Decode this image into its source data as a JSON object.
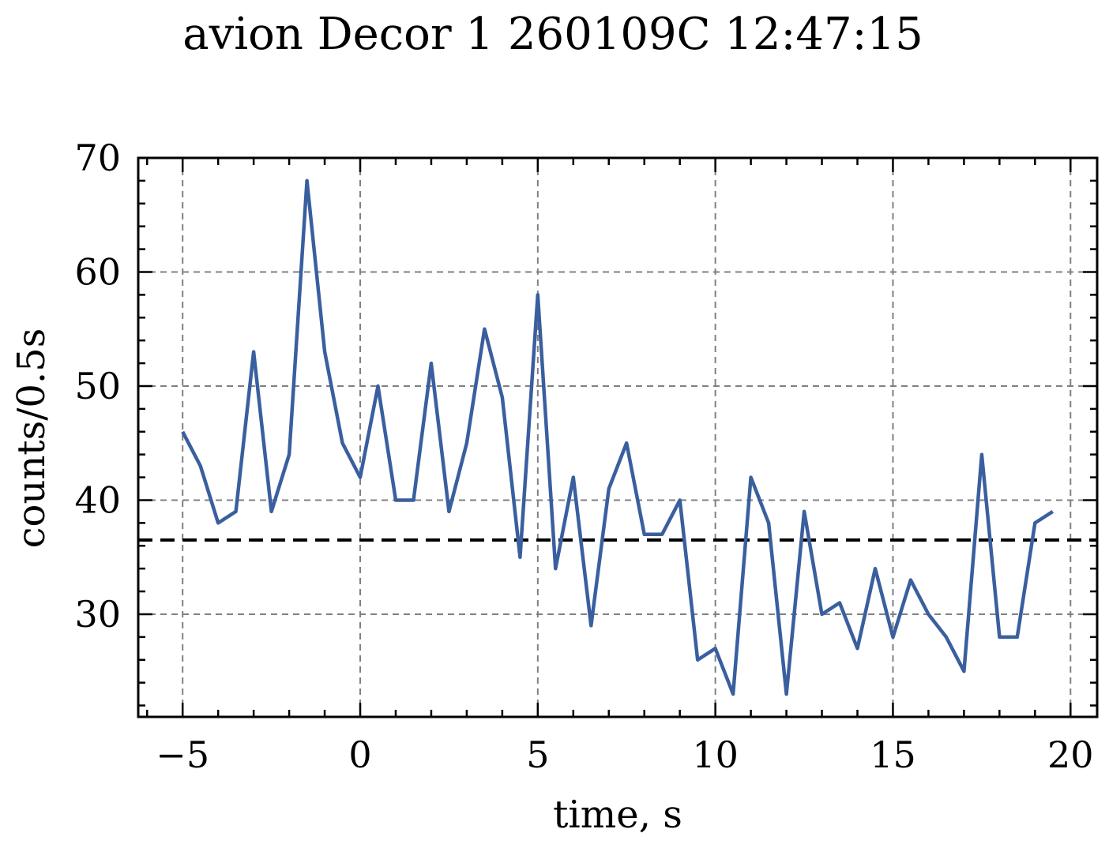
{
  "chart_data": {
    "type": "line",
    "title": "avion Decor 1 260109C 12:47:15",
    "xlabel": "time, s",
    "ylabel": "counts/0.5s",
    "xlim": [
      -6.25,
      20.75
    ],
    "ylim": [
      21,
      70
    ],
    "xticks": [
      -5,
      0,
      5,
      10,
      15,
      20
    ],
    "xtick_labels": [
      "−5",
      "0",
      "5",
      "10",
      "15",
      "20"
    ],
    "yticks": [
      30,
      40,
      50,
      60,
      70
    ],
    "ytick_labels": [
      "30",
      "40",
      "50",
      "60",
      "70"
    ],
    "grid": true,
    "series": [
      {
        "color": "#3a5f9f",
        "x": [
          -5,
          -4.5,
          -4,
          -3.5,
          -3,
          -2.5,
          -2,
          -1.5,
          -1,
          -0.5,
          0,
          0.5,
          1,
          1.5,
          2,
          2.5,
          3,
          3.5,
          4,
          4.5,
          5,
          5.5,
          6,
          6.5,
          7,
          7.5,
          8,
          8.5,
          9,
          9.5,
          10,
          10.5,
          11,
          11.5,
          12,
          12.5,
          13,
          13.5,
          14,
          14.5,
          15,
          15.5,
          16,
          16.5,
          17,
          17.5,
          18,
          18.5,
          19,
          19.5
        ],
        "y": [
          46,
          43,
          38,
          39,
          53,
          39,
          44,
          68,
          53,
          45,
          42,
          50,
          40,
          40,
          52,
          39,
          45,
          55,
          49,
          35,
          58,
          34,
          42,
          29,
          41,
          45,
          37,
          37,
          40,
          26,
          27,
          23,
          42,
          38,
          23,
          39,
          30,
          31,
          27,
          34,
          28,
          33,
          30,
          28,
          25,
          44,
          28,
          28,
          38,
          39
        ]
      }
    ],
    "reference_line": {
      "y": 36.5,
      "color": "#000000",
      "style": "dashed"
    }
  }
}
